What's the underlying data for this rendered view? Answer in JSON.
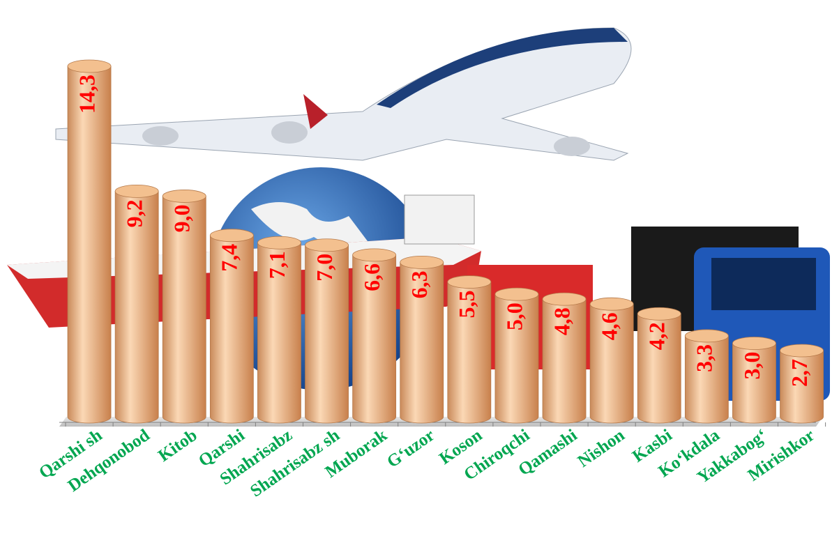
{
  "chart_data": {
    "type": "bar",
    "categories": [
      "Qarshi sh",
      "Dehqonobod",
      "Kitob",
      "Qarshi",
      "Shahrisabz",
      "Shahrisabz sh",
      "Muborak",
      "G‘uzor",
      "Koson",
      "Chiroqchi",
      "Qamashi",
      "Nishon",
      "Kasbi",
      "Ko‘kdala",
      "Yakkabog‘",
      "Mirishkor"
    ],
    "values": [
      14.3,
      9.2,
      9.0,
      7.4,
      7.1,
      7.0,
      6.6,
      6.3,
      5.5,
      5.0,
      4.8,
      4.6,
      4.2,
      3.3,
      3.0,
      2.7
    ],
    "value_labels": [
      "14,3",
      "9,2",
      "9,0",
      "7,4",
      "7,1",
      "7,0",
      "6,6",
      "6,3",
      "5,5",
      "5,0",
      "4,8",
      "4,6",
      "4,2",
      "3,3",
      "3,0",
      "2,7"
    ],
    "color": "#f3c08f",
    "value_label_color": "#ff0000",
    "category_color": "#00a650"
  }
}
